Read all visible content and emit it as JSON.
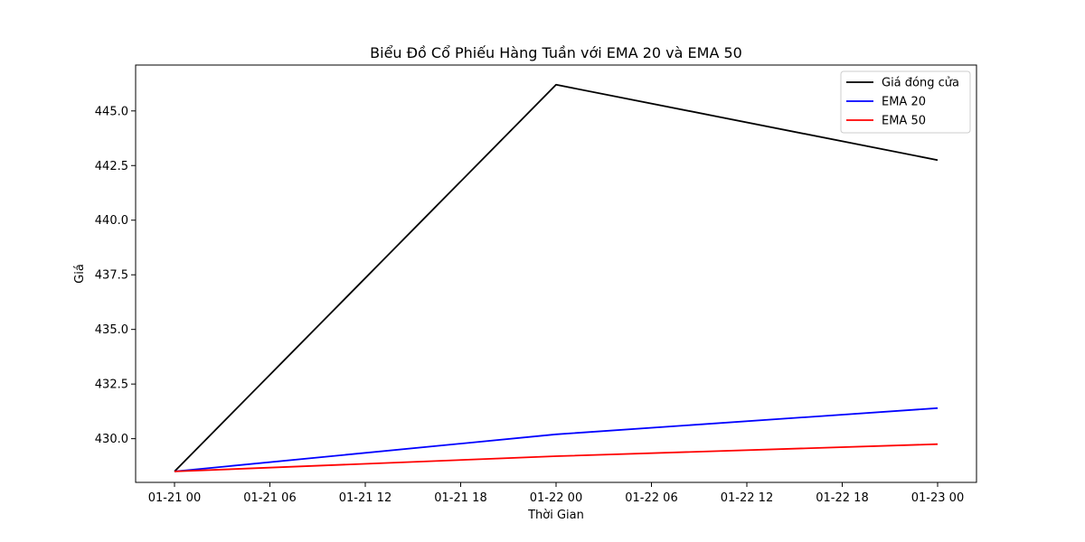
{
  "chart_data": {
    "type": "line",
    "title": "Biểu Đồ Cổ Phiếu Hàng Tuần với EMA 20 và EMA 50",
    "xlabel": "Thời Gian",
    "ylabel": "Giá",
    "x": [
      "2024-01-21 00:00",
      "2024-01-22 00:00",
      "2024-01-23 00:00"
    ],
    "x_tick_labels": [
      "01-21 00",
      "01-21 06",
      "01-21 12",
      "01-21 18",
      "01-22 00",
      "01-22 06",
      "01-22 12",
      "01-22 18",
      "01-23 00"
    ],
    "y_tick_labels": [
      "430.0",
      "432.5",
      "435.0",
      "437.5",
      "440.0",
      "442.5",
      "445.0"
    ],
    "y_ticks": [
      430.0,
      432.5,
      435.0,
      437.5,
      440.0,
      442.5,
      445.0
    ],
    "ylim": [
      428.0,
      447.1
    ],
    "grid": false,
    "legend_position": "top-right",
    "series": [
      {
        "name": "Giá đóng cửa",
        "color": "#000000",
        "values": [
          428.5,
          446.2,
          442.75
        ]
      },
      {
        "name": "EMA 20",
        "color": "#0000ff",
        "values": [
          428.5,
          430.2,
          431.4
        ]
      },
      {
        "name": "EMA 50",
        "color": "#ff0000",
        "values": [
          428.5,
          429.2,
          429.75
        ]
      }
    ]
  }
}
